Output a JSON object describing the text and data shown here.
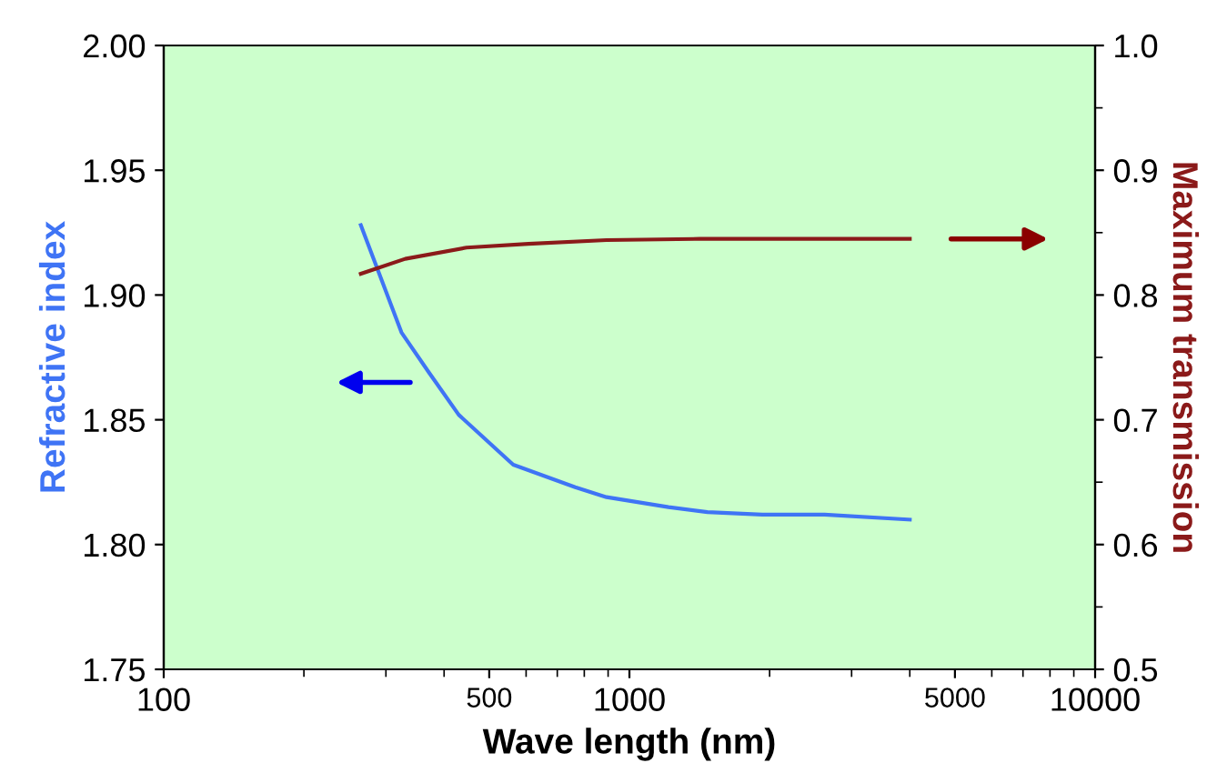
{
  "chart_data": {
    "type": "line",
    "xlabel": "Wave length (nm)",
    "ylabel": "Refractive index",
    "y2label": "Maximum transmission",
    "log": "x",
    "xlim": [
      100,
      10000
    ],
    "xticks": [
      100,
      500,
      1000,
      5000,
      10000
    ],
    "ylim": [
      1.75,
      2.0
    ],
    "yticks": [
      {
        "value": 1.75,
        "label": "1.75"
      },
      {
        "value": 1.8,
        "label": "1.80"
      },
      {
        "value": 1.85,
        "label": "1.85"
      },
      {
        "value": 1.9,
        "label": "1.90"
      },
      {
        "value": 1.95,
        "label": "1.95"
      },
      {
        "value": 2.0,
        "label": "2.00"
      }
    ],
    "y2lim": [
      0.5,
      1.0
    ],
    "y2ticks": [
      0.5,
      0.6,
      0.7,
      0.8,
      0.9,
      {
        "value": 1.0,
        "label": "1.0"
      }
    ],
    "grid": false,
    "legend": false,
    "marker": "none",
    "line_style": "solid",
    "series": [
      {
        "color": "#3f74f5",
        "x": [
          265,
          324,
          371,
          430,
          563,
          765,
          893,
          1213,
          1471,
          1928,
          2623,
          4000
        ],
        "values": [
          1.928,
          1.885,
          1.869,
          1.852,
          1.832,
          1.823,
          1.819,
          1.815,
          1.813,
          1.812,
          1.812,
          1.81
        ]
      },
      {
        "color": "#8b1a1a",
        "axis": "y2",
        "x": [
          265,
          330,
          447,
          607,
          893,
          1416,
          4000
        ],
        "values": [
          0.817,
          0.829,
          0.838,
          0.841,
          0.844,
          0.845,
          0.845
        ]
      }
    ]
  }
}
